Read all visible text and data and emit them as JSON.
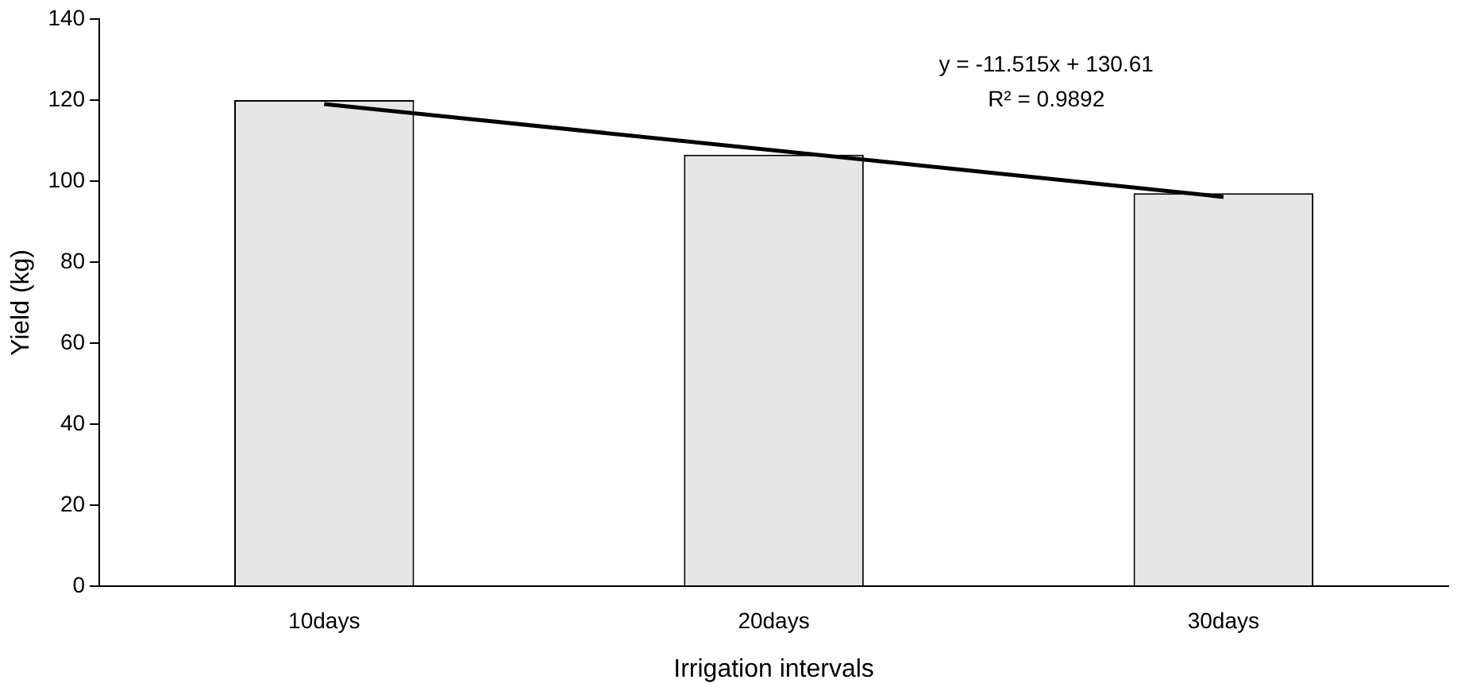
{
  "chart_data": {
    "type": "bar",
    "xlabel": "Irrigation intervals",
    "ylabel": "Yield (kg)",
    "categories": [
      "10days",
      "20days",
      "30days"
    ],
    "series": [
      {
        "color": "#e6e6e6",
        "values": [
          120,
          106.5,
          97
        ]
      },
      {
        "type": "line",
        "color": "#000000",
        "values": [
          119,
          107.6,
          96.1
        ]
      }
    ],
    "ylim": [
      0,
      140
    ],
    "yticks": [
      0,
      20,
      40,
      60,
      80,
      100,
      120,
      140
    ],
    "grid": false,
    "legend": false,
    "marker": "none",
    "annotations": [
      "y = -11.515x + 130.61",
      "R² = 0.9892"
    ]
  }
}
